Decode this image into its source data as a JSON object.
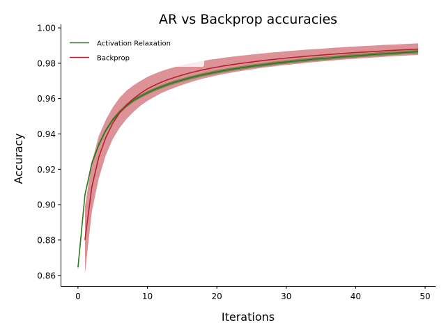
{
  "chart_data": {
    "type": "line",
    "title": "AR vs Backprop accuracies",
    "xlabel": "Iterations",
    "ylabel": "Accuracy",
    "xlim": [
      -2.5,
      51.5
    ],
    "ylim": [
      0.854,
      1.002
    ],
    "x_ticks": [
      0,
      10,
      20,
      30,
      40,
      50
    ],
    "y_ticks": [
      0.86,
      0.88,
      0.9,
      0.92,
      0.94,
      0.96,
      0.98,
      1.0
    ],
    "x_tick_labels": [
      "0",
      "10",
      "20",
      "30",
      "40",
      "50"
    ],
    "y_tick_labels": [
      "0.86",
      "0.88",
      "0.90",
      "0.92",
      "0.94",
      "0.96",
      "0.98",
      "1.00"
    ],
    "grid": false,
    "legend_position": "top-left",
    "series": [
      {
        "name": "Activation Relaxation",
        "color": "#2a7a1e",
        "band_color": "#1f6e14",
        "x": [
          0,
          1,
          2,
          3,
          4,
          5,
          6,
          7,
          8,
          9,
          10,
          11,
          12,
          13,
          14,
          15,
          16,
          17,
          18,
          19,
          20,
          21,
          22,
          23,
          24,
          25,
          26,
          27,
          28,
          29,
          30,
          31,
          32,
          33,
          34,
          35,
          36,
          37,
          38,
          39,
          40,
          41,
          42,
          43,
          44,
          45,
          46,
          47,
          48,
          49
        ],
        "y": [
          0.8645,
          0.9055,
          0.9235,
          0.934,
          0.942,
          0.948,
          0.9525,
          0.956,
          0.959,
          0.9613,
          0.9633,
          0.9651,
          0.9667,
          0.9681,
          0.9694,
          0.9705,
          0.9716,
          0.9726,
          0.9735,
          0.9743,
          0.9751,
          0.9758,
          0.9765,
          0.9771,
          0.9777,
          0.9783,
          0.9788,
          0.9793,
          0.9798,
          0.9803,
          0.9807,
          0.9811,
          0.9815,
          0.9819,
          0.9823,
          0.9826,
          0.9829,
          0.9833,
          0.9836,
          0.9839,
          0.9842,
          0.9845,
          0.9848,
          0.9851,
          0.9853,
          0.9856,
          0.9858,
          0.9861,
          0.9863,
          0.9866
        ],
        "band": [
          0.002,
          0.0015,
          0.0012,
          0.0011,
          0.001,
          0.001,
          0.001,
          0.001,
          0.001,
          0.001,
          0.001,
          0.001,
          0.001,
          0.001,
          0.001,
          0.001,
          0.001,
          0.001,
          0.001,
          0.001,
          0.001,
          0.001,
          0.001,
          0.001,
          0.001,
          0.001,
          0.001,
          0.001,
          0.001,
          0.001,
          0.001,
          0.001,
          0.001,
          0.001,
          0.001,
          0.001,
          0.001,
          0.001,
          0.001,
          0.001,
          0.001,
          0.001,
          0.001,
          0.001,
          0.001,
          0.001,
          0.001,
          0.001,
          0.001,
          0.001
        ]
      },
      {
        "name": "Backprop",
        "color": "#b5232a",
        "band_color": "#c0393f",
        "x": [
          1,
          2,
          3,
          4,
          5,
          6,
          7,
          8,
          9,
          10,
          11,
          12,
          13,
          14,
          15,
          16,
          17,
          18,
          19,
          20,
          21,
          22,
          23,
          24,
          25,
          26,
          27,
          28,
          29,
          30,
          31,
          32,
          33,
          34,
          35,
          36,
          37,
          38,
          39,
          40,
          41,
          42,
          43,
          44,
          45,
          46,
          47,
          48,
          49
        ],
        "y": [
          0.88,
          0.91,
          0.927,
          0.938,
          0.946,
          0.952,
          0.9565,
          0.96,
          0.963,
          0.9655,
          0.9675,
          0.9693,
          0.9708,
          0.9721,
          0.9733,
          0.9744,
          0.9754,
          0.9763,
          0.9771,
          0.9778,
          0.9785,
          0.9791,
          0.9797,
          0.9802,
          0.9807,
          0.9812,
          0.9817,
          0.9821,
          0.9825,
          0.9829,
          0.9833,
          0.9836,
          0.984,
          0.9843,
          0.9846,
          0.9849,
          0.9852,
          0.9855,
          0.9858,
          0.986,
          0.9863,
          0.9865,
          0.9867,
          0.987,
          0.9872,
          0.9874,
          0.9876,
          0.9878,
          0.988
        ],
        "band": [
          0.019,
          0.014,
          0.012,
          0.01,
          0.009,
          0.0085,
          0.008,
          0.0075,
          0.007,
          0.0068,
          0.0065,
          0.0062,
          0.006,
          0.0058,
          0.0056,
          0.0054,
          0.0052,
          0.005,
          0.0049,
          0.0047,
          0.0046,
          0.0045,
          0.0044,
          0.0043,
          0.0042,
          0.0041,
          0.004,
          0.004,
          0.0039,
          0.0039,
          0.0038,
          0.0038,
          0.0037,
          0.0037,
          0.0036,
          0.0036,
          0.0036,
          0.0035,
          0.0035,
          0.0035,
          0.0034,
          0.0034,
          0.0034,
          0.0034,
          0.0033,
          0.0033,
          0.0033,
          0.0033,
          0.0033
        ]
      }
    ]
  }
}
